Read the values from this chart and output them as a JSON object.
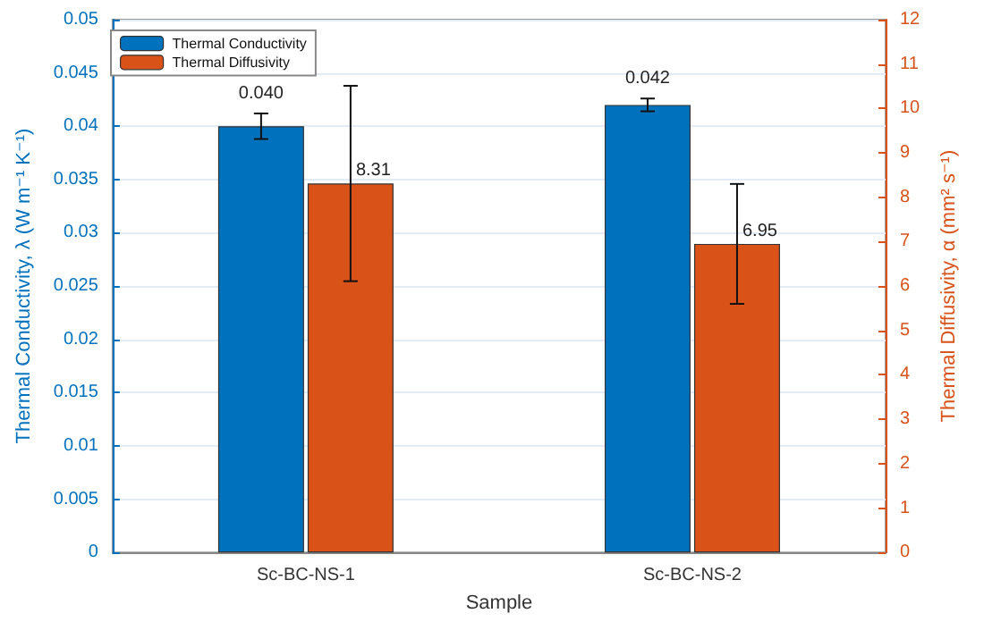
{
  "chart_data": {
    "type": "bar",
    "categories": [
      "Sc-BC-NS-1",
      "Sc-BC-NS-2"
    ],
    "xlabel": "Sample",
    "ylabel": "Thermal Conductivity, λ (W m⁻¹ K⁻¹)",
    "y2label": "Thermal Diffusivity, α (mm² s⁻¹)",
    "series": [
      {
        "name": "Thermal Conductivity",
        "color": "#0072bd",
        "values": [
          0.04,
          0.042
        ],
        "errors": [
          0.0012,
          0.0006
        ],
        "value_labels": [
          "0.040",
          "0.042"
        ]
      },
      {
        "name": "Thermal Diffusivity",
        "color": "#d95319",
        "axis": "y2",
        "values": [
          8.31,
          6.95
        ],
        "errors": [
          2.2,
          1.35
        ],
        "value_labels": [
          "8.31",
          "6.95"
        ]
      }
    ],
    "ylim": [
      0,
      0.05
    ],
    "yticks": [
      0,
      0.005,
      0.01,
      0.015,
      0.02,
      0.025,
      0.03,
      0.035,
      0.04,
      0.045,
      0.05
    ],
    "y2lim": [
      0,
      12
    ],
    "y2ticks": [
      0,
      1,
      2,
      3,
      4,
      5,
      6,
      7,
      8,
      9,
      10,
      11,
      12
    ],
    "grid": "y",
    "legend": "top left"
  }
}
